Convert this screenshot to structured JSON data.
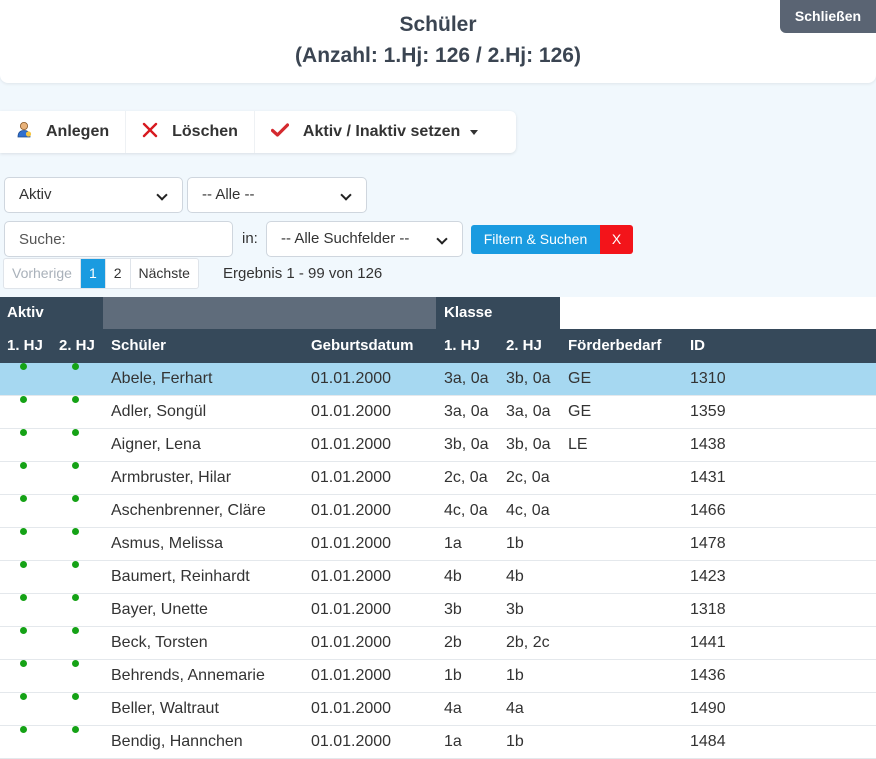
{
  "header": {
    "title": "Schüler",
    "subtitle": "(Anzahl: 1.Hj: 126 / 2.Hj: 126)",
    "close_label": "Schließen"
  },
  "toolbar": {
    "create_label": "Anlegen",
    "delete_label": "Löschen",
    "toggle_active_label": "Aktiv / Inaktiv setzen"
  },
  "filters": {
    "status_selected": "Aktiv",
    "filter2_selected": "-- Alle --",
    "search_placeholder": "Suche:",
    "in_label": "in:",
    "search_field_selected": "-- Alle Suchfelder --",
    "filter_button": "Filtern & Suchen",
    "clear_button": "X"
  },
  "pagination": {
    "prev": "Vorherige",
    "pages": [
      "1",
      "2"
    ],
    "active_page": "1",
    "next": "Nächste",
    "result": "Ergebnis 1 - 99 von 126"
  },
  "table": {
    "group_headers": {
      "aktiv": "Aktiv",
      "klasse": "Klasse"
    },
    "columns": {
      "hj1": "1. HJ",
      "hj2": "2. HJ",
      "schueler": "Schüler",
      "geburtsdatum": "Geburtsdatum",
      "klasse_hj1": "1. HJ",
      "klasse_hj2": "2. HJ",
      "foerderbedarf": "Förderbedarf",
      "id": "ID"
    },
    "active_color": "#15a216",
    "selected_row_color": "#a6d8f1",
    "rows": [
      {
        "name": "Abele, Ferhart",
        "geb": "01.01.2000",
        "k1": "3a, 0a",
        "k2": "3b, 0a",
        "foe": "GE",
        "id": "1310"
      },
      {
        "name": "Adler, Songül",
        "geb": "01.01.2000",
        "k1": "3a, 0a",
        "k2": "3a, 0a",
        "foe": "GE",
        "id": "1359"
      },
      {
        "name": "Aigner, Lena",
        "geb": "01.01.2000",
        "k1": "3b, 0a",
        "k2": "3b, 0a",
        "foe": "LE",
        "id": "1438"
      },
      {
        "name": "Armbruster, Hilar",
        "geb": "01.01.2000",
        "k1": "2c, 0a",
        "k2": "2c, 0a",
        "foe": "",
        "id": "1431"
      },
      {
        "name": "Aschenbrenner, Cläre",
        "geb": "01.01.2000",
        "k1": "4c, 0a",
        "k2": "4c, 0a",
        "foe": "",
        "id": "1466"
      },
      {
        "name": "Asmus, Melissa",
        "geb": "01.01.2000",
        "k1": "1a",
        "k2": "1b",
        "foe": "",
        "id": "1478"
      },
      {
        "name": "Baumert, Reinhardt",
        "geb": "01.01.2000",
        "k1": "4b",
        "k2": "4b",
        "foe": "",
        "id": "1423"
      },
      {
        "name": "Bayer, Unette",
        "geb": "01.01.2000",
        "k1": "3b",
        "k2": "3b",
        "foe": "",
        "id": "1318"
      },
      {
        "name": "Beck, Torsten",
        "geb": "01.01.2000",
        "k1": "2b",
        "k2": "2b, 2c",
        "foe": "",
        "id": "1441"
      },
      {
        "name": "Behrends, Annemarie",
        "geb": "01.01.2000",
        "k1": "1b",
        "k2": "1b",
        "foe": "",
        "id": "1436"
      },
      {
        "name": "Beller, Waltraut",
        "geb": "01.01.2000",
        "k1": "4a",
        "k2": "4a",
        "foe": "",
        "id": "1490"
      },
      {
        "name": "Bendig, Hannchen",
        "geb": "01.01.2000",
        "k1": "1a",
        "k2": "1b",
        "foe": "",
        "id": "1484"
      }
    ]
  }
}
